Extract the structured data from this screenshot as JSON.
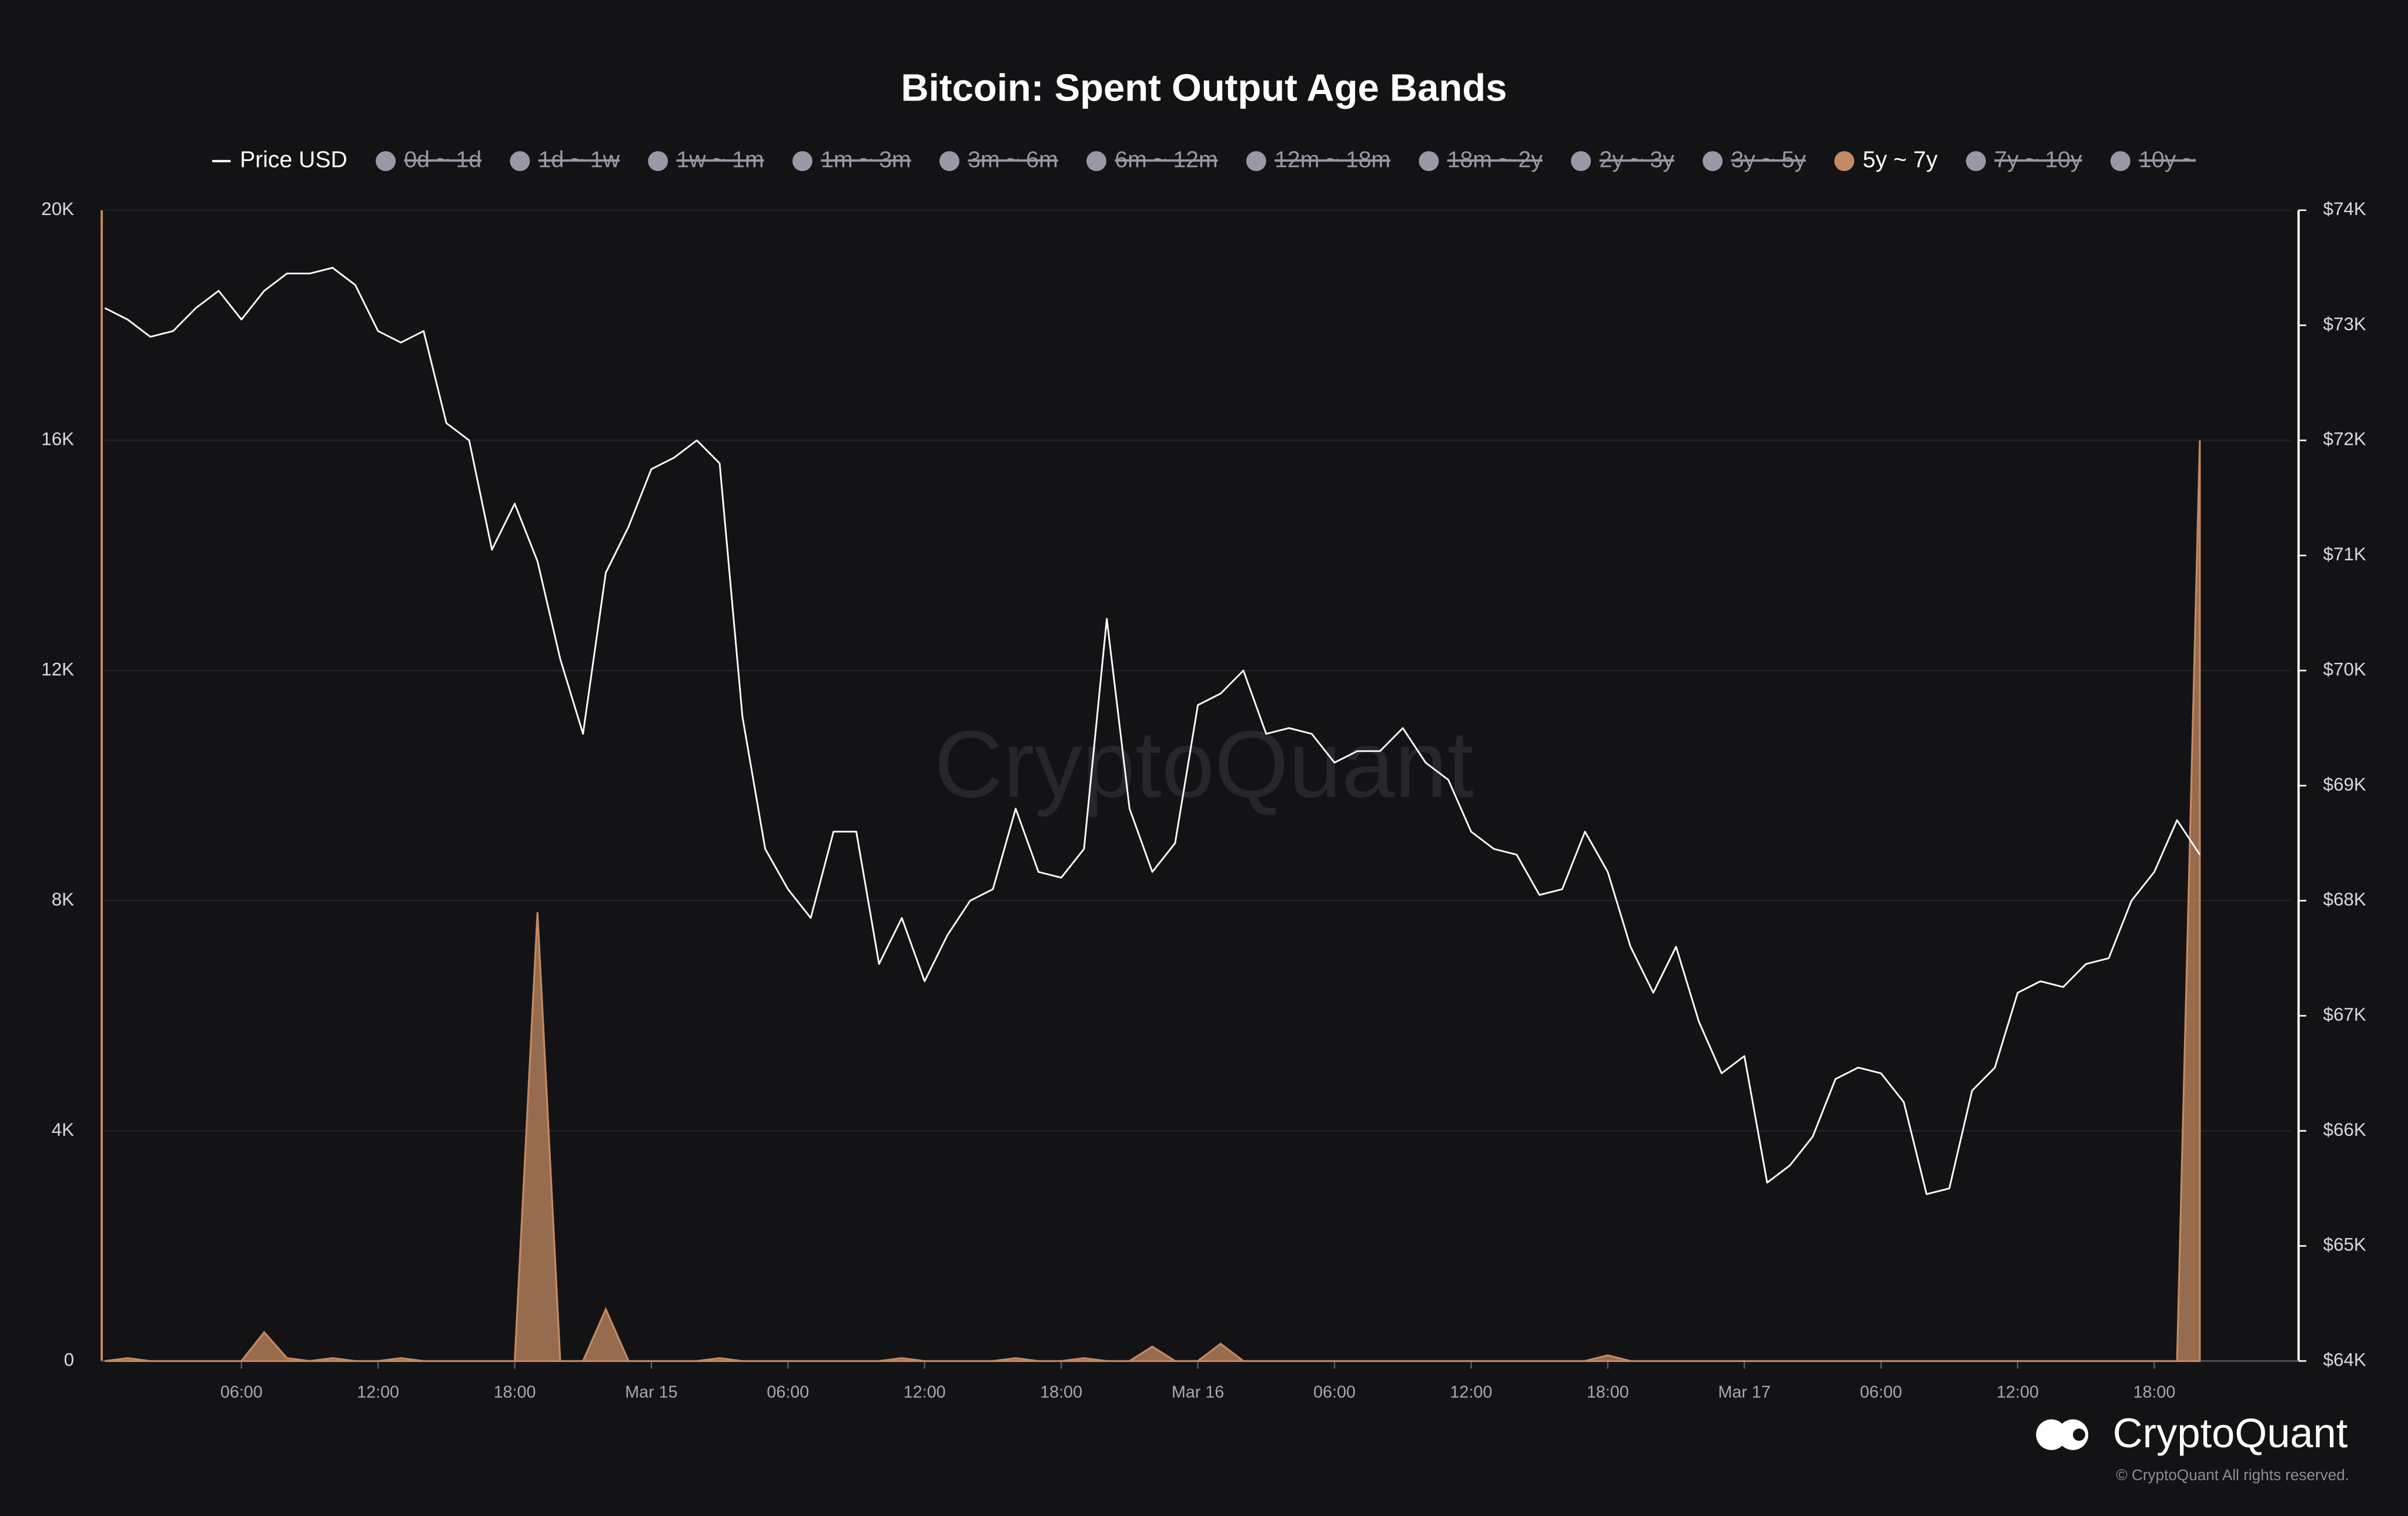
{
  "chart_data": {
    "type": "line",
    "title": "Bitcoin: Spent Output Age Bands",
    "watermark": "CryptoQuant",
    "brand": "CryptoQuant",
    "copyright": "© CryptoQuant All rights reserved.",
    "x": [
      "Mar 14 00:00",
      "Mar 14 01:00",
      "Mar 14 02:00",
      "Mar 14 03:00",
      "Mar 14 04:00",
      "Mar 14 05:00",
      "Mar 14 06:00",
      "Mar 14 07:00",
      "Mar 14 08:00",
      "Mar 14 09:00",
      "Mar 14 10:00",
      "Mar 14 11:00",
      "Mar 14 12:00",
      "Mar 14 13:00",
      "Mar 14 14:00",
      "Mar 14 15:00",
      "Mar 14 16:00",
      "Mar 14 17:00",
      "Mar 14 18:00",
      "Mar 14 19:00",
      "Mar 14 20:00",
      "Mar 14 21:00",
      "Mar 14 22:00",
      "Mar 14 23:00",
      "Mar 15 00:00",
      "Mar 15 01:00",
      "Mar 15 02:00",
      "Mar 15 03:00",
      "Mar 15 04:00",
      "Mar 15 05:00",
      "Mar 15 06:00",
      "Mar 15 07:00",
      "Mar 15 08:00",
      "Mar 15 09:00",
      "Mar 15 10:00",
      "Mar 15 11:00",
      "Mar 15 12:00",
      "Mar 15 13:00",
      "Mar 15 14:00",
      "Mar 15 15:00",
      "Mar 15 16:00",
      "Mar 15 17:00",
      "Mar 15 18:00",
      "Mar 15 19:00",
      "Mar 15 20:00",
      "Mar 15 21:00",
      "Mar 15 22:00",
      "Mar 15 23:00",
      "Mar 16 00:00",
      "Mar 16 01:00",
      "Mar 16 02:00",
      "Mar 16 03:00",
      "Mar 16 04:00",
      "Mar 16 05:00",
      "Mar 16 06:00",
      "Mar 16 07:00",
      "Mar 16 08:00",
      "Mar 16 09:00",
      "Mar 16 10:00",
      "Mar 16 11:00",
      "Mar 16 12:00",
      "Mar 16 13:00",
      "Mar 16 14:00",
      "Mar 16 15:00",
      "Mar 16 16:00",
      "Mar 16 17:00",
      "Mar 16 18:00",
      "Mar 16 19:00",
      "Mar 16 20:00",
      "Mar 16 21:00",
      "Mar 16 22:00",
      "Mar 16 23:00",
      "Mar 17 00:00",
      "Mar 17 01:00",
      "Mar 17 02:00",
      "Mar 17 03:00",
      "Mar 17 04:00",
      "Mar 17 05:00",
      "Mar 17 06:00",
      "Mar 17 07:00",
      "Mar 17 08:00",
      "Mar 17 09:00",
      "Mar 17 10:00",
      "Mar 17 11:00",
      "Mar 17 12:00",
      "Mar 17 13:00",
      "Mar 17 14:00",
      "Mar 17 15:00",
      "Mar 17 16:00",
      "Mar 17 17:00",
      "Mar 17 18:00",
      "Mar 17 19:00",
      "Mar 17 20:00"
    ],
    "series": [
      {
        "name": "Price USD",
        "color": "#ffffff",
        "axis": "y2",
        "style": "line",
        "values": [
          73150,
          73050,
          72900,
          72950,
          73150,
          73300,
          73050,
          73300,
          73450,
          73450,
          73500,
          73350,
          72950,
          72850,
          72950,
          72150,
          72000,
          71050,
          71450,
          70950,
          70100,
          69450,
          70850,
          71250,
          71750,
          71850,
          72000,
          71800,
          69600,
          68450,
          68100,
          67850,
          68600,
          68600,
          67450,
          67850,
          67300,
          67700,
          68000,
          68100,
          68800,
          68250,
          68200,
          68450,
          70450,
          68800,
          68250,
          68500,
          69700,
          69800,
          70000,
          69450,
          69500,
          69450,
          69200,
          69300,
          69300,
          69500,
          69200,
          69050,
          68600,
          68450,
          68400,
          68050,
          68100,
          68600,
          68250,
          67600,
          67200,
          67600,
          66950,
          66500,
          66650,
          65550,
          65700,
          65950,
          66450,
          66550,
          66500,
          66250,
          65450,
          65500,
          66350,
          66550,
          67200,
          67300,
          67250,
          67450,
          67500,
          68000,
          68250,
          68700,
          68400
        ]
      },
      {
        "name": "5y ~ 7y",
        "color": "#c48a62",
        "axis": "y",
        "style": "area",
        "values": [
          0,
          50,
          0,
          0,
          0,
          0,
          0,
          500,
          50,
          0,
          50,
          0,
          0,
          50,
          0,
          0,
          0,
          0,
          0,
          7800,
          0,
          0,
          900,
          0,
          0,
          0,
          0,
          50,
          0,
          0,
          0,
          0,
          0,
          0,
          0,
          50,
          0,
          0,
          0,
          0,
          50,
          0,
          0,
          50,
          0,
          0,
          250,
          0,
          0,
          300,
          0,
          0,
          0,
          0,
          0,
          0,
          0,
          0,
          0,
          0,
          0,
          0,
          0,
          0,
          0,
          0,
          100,
          0,
          0,
          0,
          0,
          0,
          0,
          0,
          0,
          0,
          0,
          0,
          0,
          0,
          0,
          0,
          0,
          0,
          0,
          0,
          0,
          0,
          0,
          0,
          0,
          0,
          16000
        ]
      }
    ],
    "inactive_series": [
      "0d ~ 1d",
      "1d ~ 1w",
      "1w ~ 1m",
      "1m ~ 3m",
      "3m ~ 6m",
      "6m ~ 12m",
      "12m ~ 18m",
      "18m ~ 2y",
      "2y ~ 3y",
      "3y ~ 5y",
      "7y ~ 10y",
      "10y ~"
    ],
    "legend_order": [
      "Price USD",
      "0d ~ 1d",
      "1d ~ 1w",
      "1w ~ 1m",
      "1m ~ 3m",
      "3m ~ 6m",
      "6m ~ 12m",
      "12m ~ 18m",
      "18m ~ 2y",
      "2y ~ 3y",
      "3y ~ 5y",
      "5y ~ 7y",
      "7y ~ 10y",
      "10y ~"
    ],
    "xlim": [
      "Mar 14 00:00",
      "Mar 18 00:00"
    ],
    "xticks": [
      {
        "value": "Mar 14 06:00",
        "label": "06:00"
      },
      {
        "value": "Mar 14 12:00",
        "label": "12:00"
      },
      {
        "value": "Mar 14 18:00",
        "label": "18:00"
      },
      {
        "value": "Mar 15 00:00",
        "label": "Mar 15"
      },
      {
        "value": "Mar 15 06:00",
        "label": "06:00"
      },
      {
        "value": "Mar 15 12:00",
        "label": "12:00"
      },
      {
        "value": "Mar 15 18:00",
        "label": "18:00"
      },
      {
        "value": "Mar 16 00:00",
        "label": "Mar 16"
      },
      {
        "value": "Mar 16 06:00",
        "label": "06:00"
      },
      {
        "value": "Mar 16 12:00",
        "label": "12:00"
      },
      {
        "value": "Mar 16 18:00",
        "label": "18:00"
      },
      {
        "value": "Mar 17 00:00",
        "label": "Mar 17"
      },
      {
        "value": "Mar 17 06:00",
        "label": "06:00"
      },
      {
        "value": "Mar 17 12:00",
        "label": "12:00"
      },
      {
        "value": "Mar 17 18:00",
        "label": "18:00"
      }
    ],
    "ylim": [
      0,
      20000
    ],
    "yticks": [
      0,
      {
        "value": 4000,
        "label": "4K"
      },
      {
        "value": 8000,
        "label": "8K"
      },
      {
        "value": 12000,
        "label": "12K"
      },
      {
        "value": 16000,
        "label": "16K"
      },
      {
        "value": 20000,
        "label": "20K"
      }
    ],
    "y2lim": [
      64000,
      74000
    ],
    "y2ticks": [
      {
        "value": 64000,
        "label": "$64K"
      },
      {
        "value": 65000,
        "label": "$65K"
      },
      {
        "value": 66000,
        "label": "$66K"
      },
      {
        "value": 67000,
        "label": "$67K"
      },
      {
        "value": 68000,
        "label": "$68K"
      },
      {
        "value": 69000,
        "label": "$69K"
      },
      {
        "value": 70000,
        "label": "$70K"
      },
      {
        "value": 71000,
        "label": "$71K"
      },
      {
        "value": 72000,
        "label": "$72K"
      },
      {
        "value": 73000,
        "label": "$73K"
      },
      {
        "value": 74000,
        "label": "$74K"
      }
    ],
    "grid": true,
    "inactive_color": "#9a98a6"
  }
}
